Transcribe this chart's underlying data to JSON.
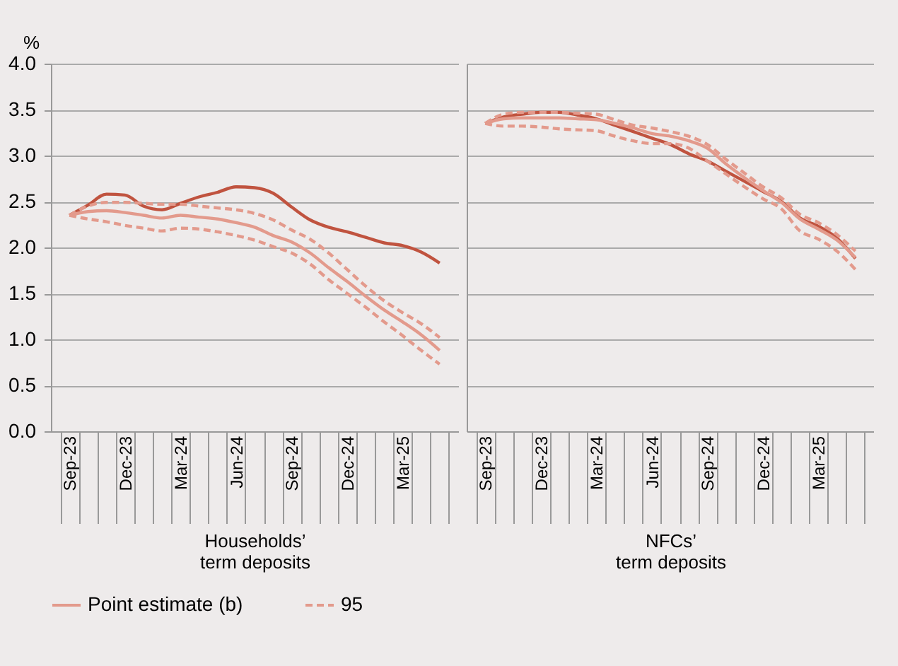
{
  "chart_data": [
    {
      "type": "line",
      "ylabel": "%",
      "xlabel": "Households’ term deposits",
      "categories": [
        "Sep-23",
        null,
        null,
        "Dec-23",
        null,
        null,
        "Mar-24",
        null,
        null,
        "Jun-24",
        null,
        null,
        "Sep-24",
        null,
        null,
        "Dec-24",
        null,
        null,
        "Mar-25",
        null,
        null
      ],
      "series": [
        {
          "color": "#c0533f",
          "line_style": "solid",
          "values": [
            2.35,
            2.46,
            2.58,
            2.57,
            2.45,
            2.41,
            2.48,
            2.55,
            2.6,
            2.66,
            2.65,
            2.59,
            2.44,
            2.3,
            2.22,
            2.17,
            2.11,
            2.05,
            2.02,
            1.95,
            1.83
          ]
        },
        {
          "name": "Point estimate (b)",
          "color": "#e39a8c",
          "line_style": "solid",
          "values": [
            2.35,
            2.39,
            2.4,
            2.38,
            2.35,
            2.32,
            2.35,
            2.33,
            2.31,
            2.27,
            2.22,
            2.13,
            2.06,
            1.94,
            1.78,
            1.63,
            1.47,
            1.32,
            1.19,
            1.05,
            0.88
          ]
        },
        {
          "name": "95",
          "color": "#e39a8c",
          "line_style": "dashed",
          "values": [
            2.35,
            2.45,
            2.49,
            2.49,
            2.48,
            2.47,
            2.47,
            2.45,
            2.43,
            2.41,
            2.37,
            2.3,
            2.19,
            2.09,
            1.94,
            1.76,
            1.58,
            1.42,
            1.29,
            1.17,
            1.02
          ]
        },
        {
          "color": "#e39a8c",
          "line_style": "dashed",
          "values": [
            2.35,
            2.31,
            2.28,
            2.24,
            2.21,
            2.18,
            2.21,
            2.2,
            2.17,
            2.13,
            2.08,
            2.01,
            1.94,
            1.82,
            1.65,
            1.5,
            1.35,
            1.19,
            1.04,
            0.88,
            0.73
          ]
        }
      ],
      "ylim": [
        0,
        4
      ],
      "yticks": [
        {
          "value": 0,
          "label": "0.0"
        },
        0.5,
        {
          "value": 1,
          "label": "1.0"
        },
        1.5,
        {
          "value": 2,
          "label": "2.0"
        },
        2.5,
        {
          "value": 3,
          "label": "3.0"
        },
        3.5,
        {
          "value": 4,
          "label": "4.0"
        }
      ],
      "grid": "y",
      "legend": "bottom"
    },
    {
      "type": "line",
      "xlabel": "NFCs’ term deposits",
      "categories": [
        "Sep-23",
        null,
        null,
        "Dec-23",
        null,
        null,
        "Mar-24",
        null,
        null,
        "Jun-24",
        null,
        null,
        "Sep-24",
        null,
        null,
        "Dec-24",
        null,
        null,
        "Mar-25",
        null,
        null
      ],
      "series": [
        {
          "color": "#c0533f",
          "line_style": "solid",
          "values": [
            3.35,
            3.42,
            3.45,
            3.47,
            3.47,
            3.44,
            3.4,
            3.33,
            3.26,
            3.19,
            3.12,
            3.02,
            2.94,
            2.83,
            2.72,
            2.61,
            2.5,
            2.32,
            2.23,
            2.1,
            1.88
          ]
        },
        {
          "color": "#e39a8c",
          "line_style": "solid",
          "values": [
            3.35,
            3.4,
            3.41,
            3.41,
            3.41,
            3.4,
            3.39,
            3.35,
            3.3,
            3.24,
            3.21,
            3.16,
            3.08,
            2.91,
            2.76,
            2.62,
            2.49,
            2.31,
            2.2,
            2.08,
            1.89
          ]
        },
        {
          "color": "#e39a8c",
          "line_style": "dashed",
          "values": [
            3.35,
            3.45,
            3.47,
            3.47,
            3.47,
            3.46,
            3.45,
            3.39,
            3.33,
            3.3,
            3.26,
            3.21,
            3.12,
            2.96,
            2.81,
            2.66,
            2.54,
            2.36,
            2.27,
            2.14,
            1.96
          ]
        },
        {
          "color": "#e39a8c",
          "line_style": "dashed",
          "values": [
            3.35,
            3.32,
            3.32,
            3.31,
            3.29,
            3.28,
            3.27,
            3.21,
            3.16,
            3.13,
            3.13,
            3.08,
            2.94,
            2.8,
            2.66,
            2.53,
            2.42,
            2.18,
            2.09,
            1.96,
            1.76
          ]
        }
      ],
      "ylim": [
        0,
        4
      ],
      "yticks": [
        {
          "value": 0,
          "label": null
        },
        {
          "value": 0.5,
          "label": null
        },
        {
          "value": 1,
          "label": null
        },
        {
          "value": 1.5,
          "label": null
        },
        {
          "value": 2,
          "label": null
        },
        {
          "value": 2.5,
          "label": null
        },
        {
          "value": 3,
          "label": null
        },
        {
          "value": 3.5,
          "label": null
        },
        {
          "value": 4,
          "label": null
        }
      ],
      "grid": "y",
      "tick_labels": "x"
    }
  ]
}
